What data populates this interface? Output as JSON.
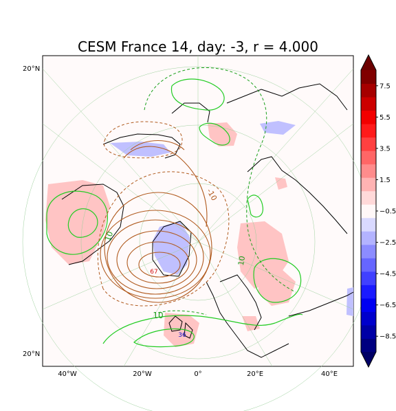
{
  "chart_data": {
    "type": "contour-map",
    "title": "CESM France 14, day: -3, r = 4.000",
    "projection": "north polar stereographic",
    "map_tick_labels": {
      "left": [
        "20°N",
        "20°N"
      ],
      "bottom": [
        "40°W",
        "20°W",
        "0°",
        "20°E",
        "40°E"
      ]
    },
    "colorbar": {
      "ticks": [
        "7.5",
        "5.5",
        "3.5",
        "1.5",
        "−0.5",
        "−2.5",
        "−4.5",
        "−6.5",
        "−8.5"
      ],
      "range": [
        -9.5,
        8.5
      ],
      "extend": "both",
      "colors": [
        "#000080",
        "#0000a6",
        "#0000cc",
        "#0000f2",
        "#1a1aff",
        "#4040ff",
        "#6666ff",
        "#8c8cff",
        "#b3b3ff",
        "#d9d9ff",
        "#fff8f8",
        "#ffd9d9",
        "#ffb3b3",
        "#ff8c8c",
        "#ff6666",
        "#ff4040",
        "#ff1a1a",
        "#f20000",
        "#cc0000",
        "#a60000",
        "#800000"
      ]
    },
    "contour_labels": [
      {
        "text": "-10",
        "color": "#b05a1e"
      },
      {
        "text": "10",
        "color": "#1a9a1a"
      },
      {
        "text": "10",
        "color": "#1a9a1a"
      },
      {
        "text": "10",
        "color": "#1a9a1a"
      },
      {
        "text": "67",
        "color": "#d01010"
      },
      {
        "text": "36",
        "color": "#1010d0"
      }
    ],
    "contour_colors": {
      "positive": "#22cc22",
      "negative": "#b05a1e"
    },
    "grid": true
  }
}
